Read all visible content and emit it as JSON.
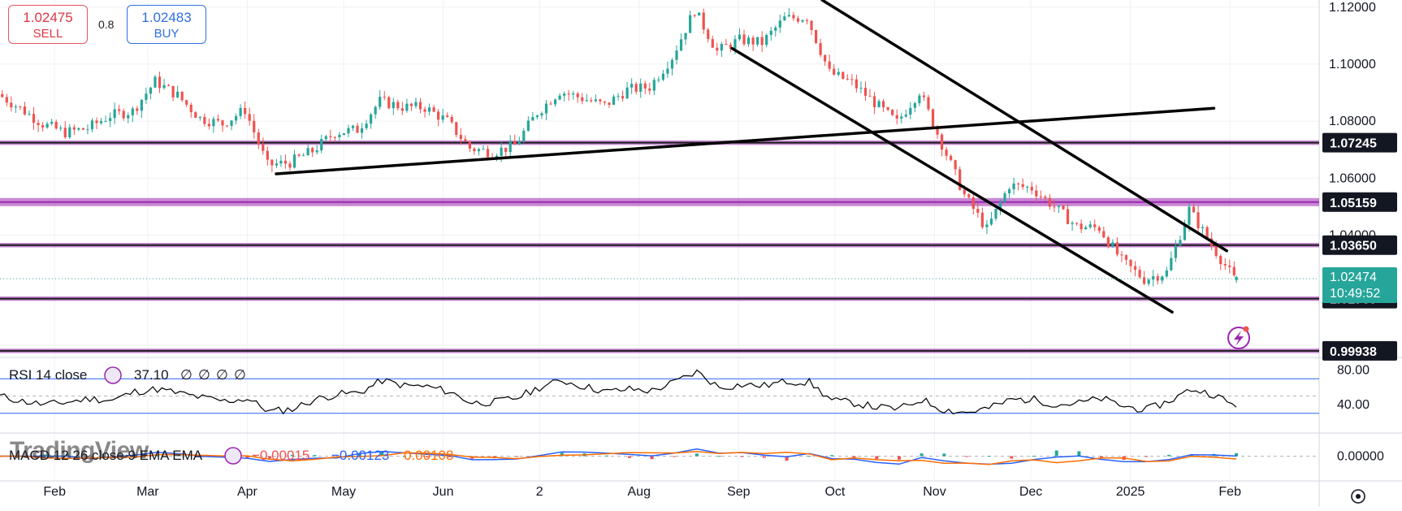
{
  "trade": {
    "sell_price": "1.02475",
    "sell_label": "SELL",
    "spread": "0.8",
    "buy_price": "1.02483",
    "buy_label": "BUY"
  },
  "watermark": "TradingView",
  "colors": {
    "up_candle": "#26a69a",
    "down_candle": "#ef5350",
    "level_purple": "#9c27b0",
    "trendline": "#000000",
    "last_price": "#26a69a",
    "macd_line": "#2962ff",
    "signal_line": "#ff6d00",
    "rsi_line": "#000000",
    "rsi_band": "#2962ff"
  },
  "chart_data": {
    "type": "candlestick",
    "symbol_timeframe": "daily",
    "x_ticks": [
      "Feb",
      "Mar",
      "Apr",
      "May",
      "Jun",
      "2",
      "Aug",
      "Sep",
      "Oct",
      "Nov",
      "Dec",
      "2025",
      "Feb"
    ],
    "price_axis": {
      "ticks": [
        1.1,
        1.08,
        1.06,
        1.04,
        1.12
      ],
      "ylim": [
        0.9985,
        1.1225
      ]
    },
    "horizontal_levels": [
      {
        "price": 1.07245,
        "label": "1.07245"
      },
      {
        "price": 1.05159,
        "label": "1.05159"
      },
      {
        "price": 1.0365,
        "label": "1.03650"
      },
      {
        "price": 1.01769,
        "label": "1.01769"
      },
      {
        "price": 0.99938,
        "label": "0.99938"
      }
    ],
    "last_price": {
      "price": 1.02474,
      "label": "1.02474",
      "countdown": "10:49:52"
    },
    "trendlines": [
      {
        "name": "support-rising",
        "from": [
          "2024-04-10",
          1.0615
        ],
        "to": [
          "2025-01-27",
          1.0845
        ]
      },
      {
        "name": "channel-upper",
        "from": [
          "2024-09-27",
          1.1225
        ],
        "to": [
          "2025-01-31",
          1.0345
        ]
      },
      {
        "name": "channel-lower",
        "from": [
          "2024-08-30",
          1.1055
        ],
        "to": [
          "2025-01-14",
          1.013
        ]
      }
    ],
    "ohlc_close_path": [
      [
        "2024-01-15",
        1.0895
      ],
      [
        "2024-01-22",
        1.0845
      ],
      [
        "2024-01-29",
        1.079
      ],
      [
        "2024-02-05",
        1.076
      ],
      [
        "2024-02-12",
        1.0775
      ],
      [
        "2024-02-19",
        1.082
      ],
      [
        "2024-02-26",
        1.0835
      ],
      [
        "2024-03-04",
        1.094
      ],
      [
        "2024-03-11",
        1.089
      ],
      [
        "2024-03-18",
        1.081
      ],
      [
        "2024-03-25",
        1.079
      ],
      [
        "2024-04-01",
        1.084
      ],
      [
        "2024-04-08",
        1.0645
      ],
      [
        "2024-04-15",
        1.0655
      ],
      [
        "2024-04-22",
        1.0695
      ],
      [
        "2024-04-29",
        1.076
      ],
      [
        "2024-05-06",
        1.077
      ],
      [
        "2024-05-13",
        1.087
      ],
      [
        "2024-05-20",
        1.085
      ],
      [
        "2024-05-27",
        1.0848
      ],
      [
        "2024-06-03",
        1.08
      ],
      [
        "2024-06-10",
        1.0705
      ],
      [
        "2024-06-17",
        1.069
      ],
      [
        "2024-06-24",
        1.0715
      ],
      [
        "2024-07-01",
        1.083
      ],
      [
        "2024-07-08",
        1.0905
      ],
      [
        "2024-07-15",
        1.088
      ],
      [
        "2024-07-22",
        1.0855
      ],
      [
        "2024-07-29",
        1.091
      ],
      [
        "2024-08-05",
        1.092
      ],
      [
        "2024-08-12",
        1.1025
      ],
      [
        "2024-08-19",
        1.119
      ],
      [
        "2024-08-26",
        1.1045
      ],
      [
        "2024-09-02",
        1.1085
      ],
      [
        "2024-09-09",
        1.1075
      ],
      [
        "2024-09-16",
        1.116
      ],
      [
        "2024-09-23",
        1.1165
      ],
      [
        "2024-09-30",
        1.097
      ],
      [
        "2024-10-07",
        1.0935
      ],
      [
        "2024-10-14",
        1.0865
      ],
      [
        "2024-10-21",
        1.0795
      ],
      [
        "2024-10-28",
        1.0905
      ],
      [
        "2024-11-04",
        1.072
      ],
      [
        "2024-11-11",
        1.054
      ],
      [
        "2024-11-18",
        1.042
      ],
      [
        "2024-11-25",
        1.0575
      ],
      [
        "2024-12-02",
        1.0565
      ],
      [
        "2024-12-09",
        1.05
      ],
      [
        "2024-12-16",
        1.043
      ],
      [
        "2024-12-23",
        1.0425
      ],
      [
        "2024-12-30",
        1.031
      ],
      [
        "2025-01-06",
        1.0245
      ],
      [
        "2025-01-13",
        1.027
      ],
      [
        "2025-01-20",
        1.049
      ],
      [
        "2025-01-27",
        1.0365
      ],
      [
        "2025-02-03",
        1.0247
      ]
    ],
    "rsi": {
      "label": "RSI 14 close",
      "value": "37.10",
      "placeholders": [
        "∅",
        "∅",
        "∅",
        "∅"
      ],
      "ticks": [
        "80.00",
        "40.00"
      ],
      "upper_band": 70,
      "lower_band": 30,
      "ylim": [
        10,
        90
      ],
      "values": [
        50,
        44,
        40,
        43,
        47,
        45,
        55,
        58,
        53,
        48,
        44,
        47,
        32,
        35,
        46,
        52,
        54,
        68,
        62,
        61,
        55,
        42,
        43,
        48,
        60,
        68,
        61,
        55,
        58,
        56,
        66,
        78,
        60,
        63,
        62,
        67,
        66,
        45,
        42,
        37,
        35,
        46,
        34,
        31,
        36,
        46,
        46,
        40,
        42,
        47,
        38,
        34,
        44,
        58,
        52,
        37.1
      ]
    },
    "macd": {
      "label": "MACD 12 26 close 9 EMA EMA",
      "values_display": [
        "−0.00015",
        "−0.00123",
        "0.00108"
      ],
      "ticks": [
        "0.00000"
      ],
      "ylim": [
        -0.012,
        0.012
      ]
    }
  }
}
